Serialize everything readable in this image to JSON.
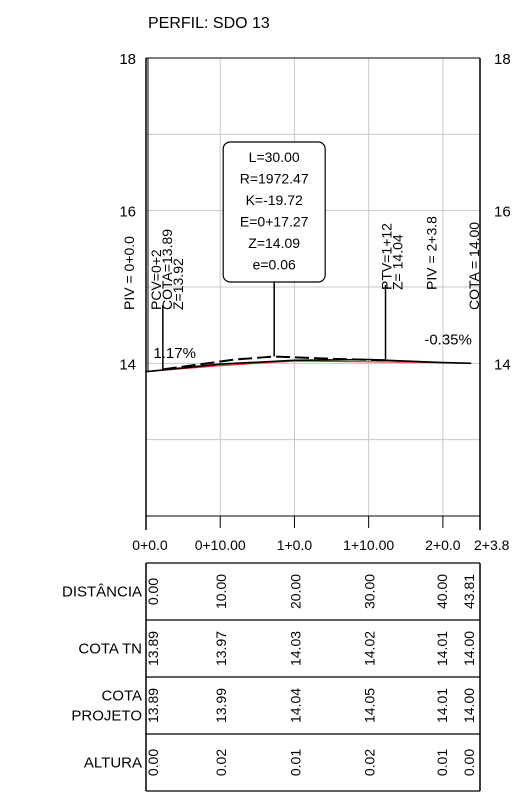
{
  "title": "PERFIL: SDO 13",
  "chart_data": {
    "type": "line",
    "y_ticks": [
      18,
      16,
      14
    ],
    "y_range": [
      12,
      18
    ],
    "x_range": [
      0,
      45
    ],
    "x_ticks": [
      {
        "x": 0,
        "label": "0+0.0"
      },
      {
        "x": 10,
        "label": "0+10.00"
      },
      {
        "x": 20,
        "label": "1+0.0"
      },
      {
        "x": 30,
        "label": "1+10.00"
      },
      {
        "x": 40,
        "label": "2+0.0"
      },
      {
        "x": 45,
        "label": "2+3.8"
      }
    ],
    "grid": true,
    "terrain": [
      [
        0,
        13.89
      ],
      [
        10,
        13.97
      ],
      [
        20,
        14.03
      ],
      [
        30,
        14.02
      ],
      [
        40,
        14.01
      ],
      [
        43.81,
        14.0
      ]
    ],
    "project": [
      [
        0,
        13.89
      ],
      [
        10,
        13.99
      ],
      [
        20,
        14.04
      ],
      [
        30,
        14.05
      ],
      [
        40,
        14.01
      ],
      [
        43.81,
        14.0
      ]
    ],
    "parabola": [
      [
        2.27,
        13.92
      ],
      [
        12,
        14.05
      ],
      [
        17.27,
        14.09
      ],
      [
        25,
        14.06
      ],
      [
        32.27,
        14.04
      ]
    ],
    "grade_labels": [
      {
        "text": "1.17%",
        "x": 1.0,
        "y": 14.07
      },
      {
        "text": "-0.35%",
        "x": 37.5,
        "y": 14.25
      }
    ],
    "vertical_labels": [
      {
        "lines": [
          "PIV = 0+0.0"
        ],
        "x": 0
      },
      {
        "lines": [
          "PCV=0+2",
          "COTA=13.89",
          "Z=13.92"
        ],
        "x": 2.27
      },
      {
        "lines": [
          "PTV=1+12",
          "Z= 14.04"
        ],
        "x": 32.27
      },
      {
        "lines": [
          "PIV = 2+3.8"
        ],
        "x": 40.5
      },
      {
        "lines": [
          "COTA = 14.00"
        ],
        "x": 43.81
      }
    ],
    "curve_box": {
      "lines": [
        "L=30.00",
        "R=1972.47",
        "K=-19.72",
        "E=0+17.27",
        "Z=14.09",
        "e=0.06"
      ],
      "x": 17.27
    },
    "table": {
      "rows": [
        {
          "label": [
            "DISTÂNCIA"
          ],
          "values": [
            "0.00",
            "10.00",
            "20.00",
            "30.00",
            "40.00",
            "43.81"
          ]
        },
        {
          "label": [
            "COTA TN"
          ],
          "values": [
            "13.89",
            "13.97",
            "14.03",
            "14.02",
            "14.01",
            "14.00"
          ]
        },
        {
          "label": [
            "COTA",
            "PROJETO"
          ],
          "values": [
            "13.89",
            "13.99",
            "14.04",
            "14.05",
            "14.01",
            "14.00"
          ]
        },
        {
          "label": [
            "ALTURA"
          ],
          "values": [
            "0.00",
            "0.02",
            "0.01",
            "0.02",
            "0.01",
            "0.00"
          ]
        }
      ],
      "x_positions": [
        0,
        10,
        20,
        30,
        40,
        43.81
      ]
    },
    "colors": {
      "axis": "#000000",
      "grid": "#c8c8c8",
      "terrain": "#e0302c",
      "project": "#000000"
    }
  }
}
